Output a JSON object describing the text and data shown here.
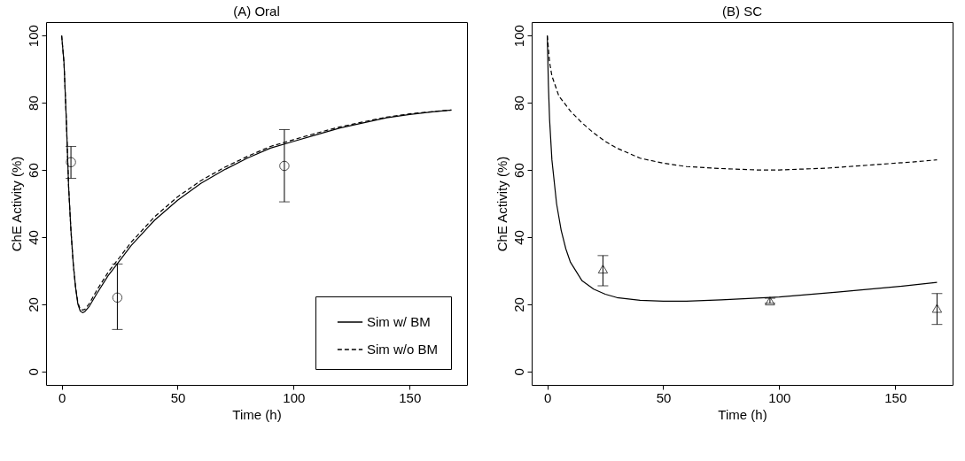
{
  "chart_data": [
    {
      "type": "line",
      "title": "(A) Oral",
      "xlabel": "Time (h)",
      "ylabel": "ChE Activity (%)",
      "xlim": [
        -6.72,
        174.72
      ],
      "ylim": [
        -4,
        104
      ],
      "xticks": [
        0,
        50,
        100,
        150
      ],
      "yticks": [
        0,
        20,
        40,
        60,
        80,
        100
      ],
      "grid": false,
      "legend": "bottom right",
      "series": [
        {
          "name": "Sim w/ BM",
          "color": "#000000",
          "line_style": "solid",
          "x": [
            0,
            1,
            2,
            3,
            4,
            5,
            6,
            7,
            8,
            9,
            10,
            12,
            15,
            20,
            25,
            30,
            40,
            50,
            60,
            70,
            80,
            90,
            100,
            110,
            120,
            130,
            140,
            150,
            160,
            168
          ],
          "values": [
            100,
            92,
            75,
            55,
            42,
            32,
            25,
            20,
            18,
            17.5,
            17.8,
            19.5,
            23,
            28.5,
            33,
            37.5,
            45,
            51,
            56,
            60,
            63.5,
            66.5,
            68.5,
            70.5,
            72.5,
            74,
            75.5,
            76.5,
            77.3,
            77.8
          ]
        },
        {
          "name": "Sim w/o BM",
          "color": "#000000",
          "line_style": "dashed",
          "x": [
            0,
            1,
            2,
            3,
            4,
            5,
            6,
            7,
            8,
            9,
            10,
            12,
            15,
            20,
            25,
            30,
            40,
            50,
            60,
            70,
            80,
            90,
            100,
            110,
            120,
            130,
            140,
            150,
            160,
            168
          ],
          "values": [
            100,
            92,
            75,
            55,
            42,
            32,
            25,
            20.5,
            18.5,
            18.3,
            18.5,
            20.3,
            24,
            29.5,
            34,
            38.5,
            46,
            52,
            56.8,
            60.7,
            64,
            67,
            69,
            71,
            72.8,
            74.3,
            75.7,
            76.7,
            77.4,
            77.8
          ]
        },
        {
          "type": "scatter",
          "color": "#000000",
          "marker": "circle",
          "x": [
            4,
            24,
            96
          ],
          "values": [
            62.3,
            22,
            61.2
          ],
          "errors": [
            [
              57.5,
              67
            ],
            [
              12.5,
              32
            ],
            [
              50.5,
              72
            ]
          ]
        }
      ]
    },
    {
      "type": "line",
      "title": "(B) SC",
      "xlabel": "Time (h)",
      "ylabel": "ChE Activity (%)",
      "xlim": [
        -6.72,
        174.72
      ],
      "ylim": [
        -4,
        104
      ],
      "xticks": [
        0,
        50,
        100,
        150
      ],
      "yticks": [
        0,
        20,
        40,
        60,
        80,
        100
      ],
      "grid": false,
      "legend": false,
      "series": [
        {
          "color": "#000000",
          "line_style": "solid",
          "x": [
            0,
            0.5,
            1,
            2,
            4,
            6,
            8,
            10,
            15,
            20,
            25,
            30,
            40,
            50,
            60,
            75,
            100,
            125,
            150,
            168
          ],
          "values": [
            100,
            85,
            75,
            63,
            50,
            42,
            36.5,
            32.5,
            27,
            24.5,
            23,
            22,
            21.2,
            20.9,
            20.9,
            21.3,
            22.2,
            23.6,
            25.2,
            26.5
          ]
        },
        {
          "color": "#000000",
          "line_style": "dashed",
          "x": [
            0,
            1,
            2,
            5,
            10,
            15,
            20,
            25,
            30,
            40,
            50,
            60,
            75,
            90,
            100,
            120,
            140,
            160,
            168
          ],
          "values": [
            100,
            92,
            88,
            82,
            77.5,
            74,
            71,
            68.5,
            66.5,
            63.5,
            62,
            61,
            60.4,
            60,
            60,
            60.5,
            61.5,
            62.5,
            63
          ]
        },
        {
          "type": "scatter",
          "color": "#000000",
          "marker": "triangle",
          "x": [
            24,
            96,
            168
          ],
          "values": [
            30.5,
            21,
            18.8
          ],
          "errors": [
            [
              25.5,
              34.5
            ],
            [
              20.3,
              21.8
            ],
            [
              14,
              23.2
            ]
          ]
        }
      ]
    }
  ]
}
